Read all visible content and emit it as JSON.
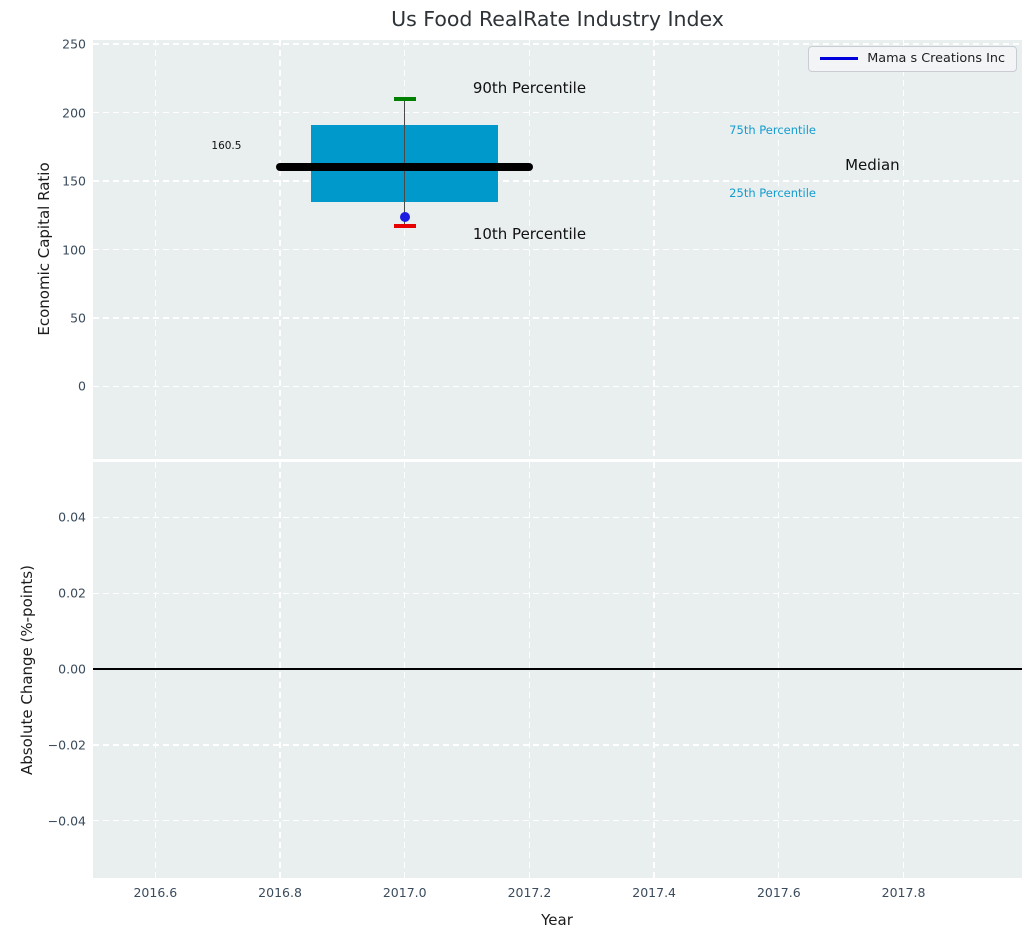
{
  "chart_data": {
    "type": "boxplot",
    "title": "Us Food RealRate Industry Index",
    "xlabel": "Year",
    "xlim": [
      2016.5,
      2017.99
    ],
    "xticks": [
      {
        "value": 2016.6,
        "label": "2016.6"
      },
      {
        "value": 2016.8,
        "label": "2016.8"
      },
      {
        "value": 2017.0,
        "label": "2017.0"
      },
      {
        "value": 2017.2,
        "label": "2017.2"
      },
      {
        "value": 2017.4,
        "label": "2017.4"
      },
      {
        "value": 2017.6,
        "label": "2017.6"
      },
      {
        "value": 2017.8,
        "label": "2017.8"
      }
    ],
    "legend": {
      "label": "Mama s Creations Inc",
      "line_color": "#0000dd",
      "position": "upper-right"
    },
    "grid": true,
    "colors": {
      "plot_background": "#e9eeef",
      "grid": "#ffffff",
      "tick_text": "#3a4b5c",
      "axis_text": "#1c1c1c",
      "box_fill": "#0099cc",
      "median_line": "#000000",
      "whisker": "#4a4a4a",
      "p90_cap": "#008000",
      "p10_cap": "#e60000",
      "company_point": "#1c1ce0",
      "percentile_text": "#149cce"
    },
    "top_subplot": {
      "ylabel": "Economic Capital Ratio",
      "ylim": [
        -53,
        253
      ],
      "yticks": [
        {
          "value": 250,
          "label": "250"
        },
        {
          "value": 200,
          "label": "200"
        },
        {
          "value": 150,
          "label": "150"
        },
        {
          "value": 100,
          "label": "100"
        },
        {
          "value": 50,
          "label": "50"
        },
        {
          "value": 0,
          "label": "0"
        }
      ],
      "boxplot": {
        "x": 2017.0,
        "p90": 210,
        "q3": 191,
        "median": 160.5,
        "q1": 135,
        "p10": 117,
        "box_halfwidth": 0.15,
        "median_halfwidth": 0.206,
        "cap_halfwidth": 0.018
      },
      "company_point": {
        "x": 2017.0,
        "y": 124
      },
      "annotations": [
        {
          "id": "annotation-90th-percentile",
          "text": "90th Percentile",
          "x": 2017.2,
          "y": 218,
          "color": "#111111",
          "size": 15
        },
        {
          "id": "annotation-10th-percentile",
          "text": "10th Percentile",
          "x": 2017.2,
          "y": 111,
          "color": "#111111",
          "size": 15
        },
        {
          "id": "annotation-75th-percentile",
          "text": "75th Percentile",
          "x": 2017.59,
          "y": 187,
          "color": "#149cce",
          "size": 11.5
        },
        {
          "id": "annotation-25th-percentile",
          "text": "25th Percentile",
          "x": 2017.59,
          "y": 141,
          "color": "#149cce",
          "size": 11.5
        },
        {
          "id": "annotation-median",
          "text": "Median",
          "x": 2017.75,
          "y": 162,
          "color": "#111111",
          "size": 15
        },
        {
          "id": "annotation-median-value",
          "text": "160.5",
          "x": 2016.714,
          "y": 175.5,
          "color": "#111111",
          "size": 10.5
        }
      ]
    },
    "bottom_subplot": {
      "ylabel": "Absolute Change (%-points)",
      "ylim": [
        -0.0551,
        0.0546
      ],
      "yticks": [
        {
          "value": 0.04,
          "label": "0.04"
        },
        {
          "value": 0.02,
          "label": "0.02"
        },
        {
          "value": 0,
          "label": "0.00"
        },
        {
          "value": -0.02,
          "label": "−0.02"
        },
        {
          "value": -0.04,
          "label": "−0.04"
        }
      ],
      "zero_line": 0
    }
  }
}
